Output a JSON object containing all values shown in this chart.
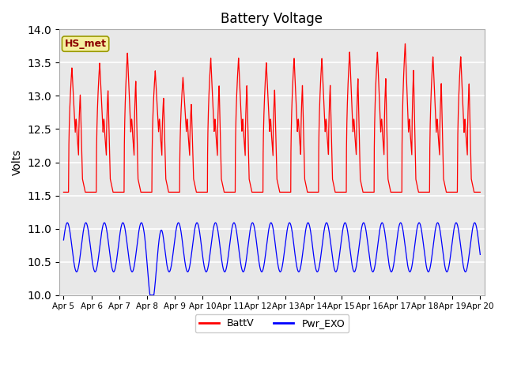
{
  "title": "Battery Voltage",
  "ylabel": "Volts",
  "xlim_days": [
    4.85,
    20.15
  ],
  "ylim": [
    10.0,
    14.0
  ],
  "yticks": [
    10.0,
    10.5,
    11.0,
    11.5,
    12.0,
    12.5,
    13.0,
    13.5,
    14.0
  ],
  "xtick_labels": [
    "Apr 5",
    "Apr 6",
    "Apr 7",
    "Apr 8",
    "Apr 9",
    "Apr 10",
    "Apr 11",
    "Apr 12",
    "Apr 13",
    "Apr 14",
    "Apr 15",
    "Apr 16",
    "Apr 17",
    "Apr 18",
    "Apr 19",
    "Apr 20"
  ],
  "xtick_positions": [
    5,
    6,
    7,
    8,
    9,
    10,
    11,
    12,
    13,
    14,
    15,
    16,
    17,
    18,
    19,
    20
  ],
  "battv_color": "red",
  "pwr_exo_color": "blue",
  "legend_label_battv": "BattV",
  "legend_label_pwr": "Pwr_EXO",
  "station_label": "HS_met",
  "background_color": "#e8e8e8",
  "grid_color": "white",
  "title_fontsize": 12,
  "peak_heights": [
    13.43,
    13.5,
    13.65,
    13.38,
    13.28,
    13.57,
    13.57,
    13.5,
    13.57,
    13.57,
    13.67,
    13.67,
    13.8,
    13.6,
    13.6
  ],
  "pwr_exo_deep_dip_day": 8.3,
  "figsize": [
    6.4,
    4.8
  ],
  "dpi": 100
}
